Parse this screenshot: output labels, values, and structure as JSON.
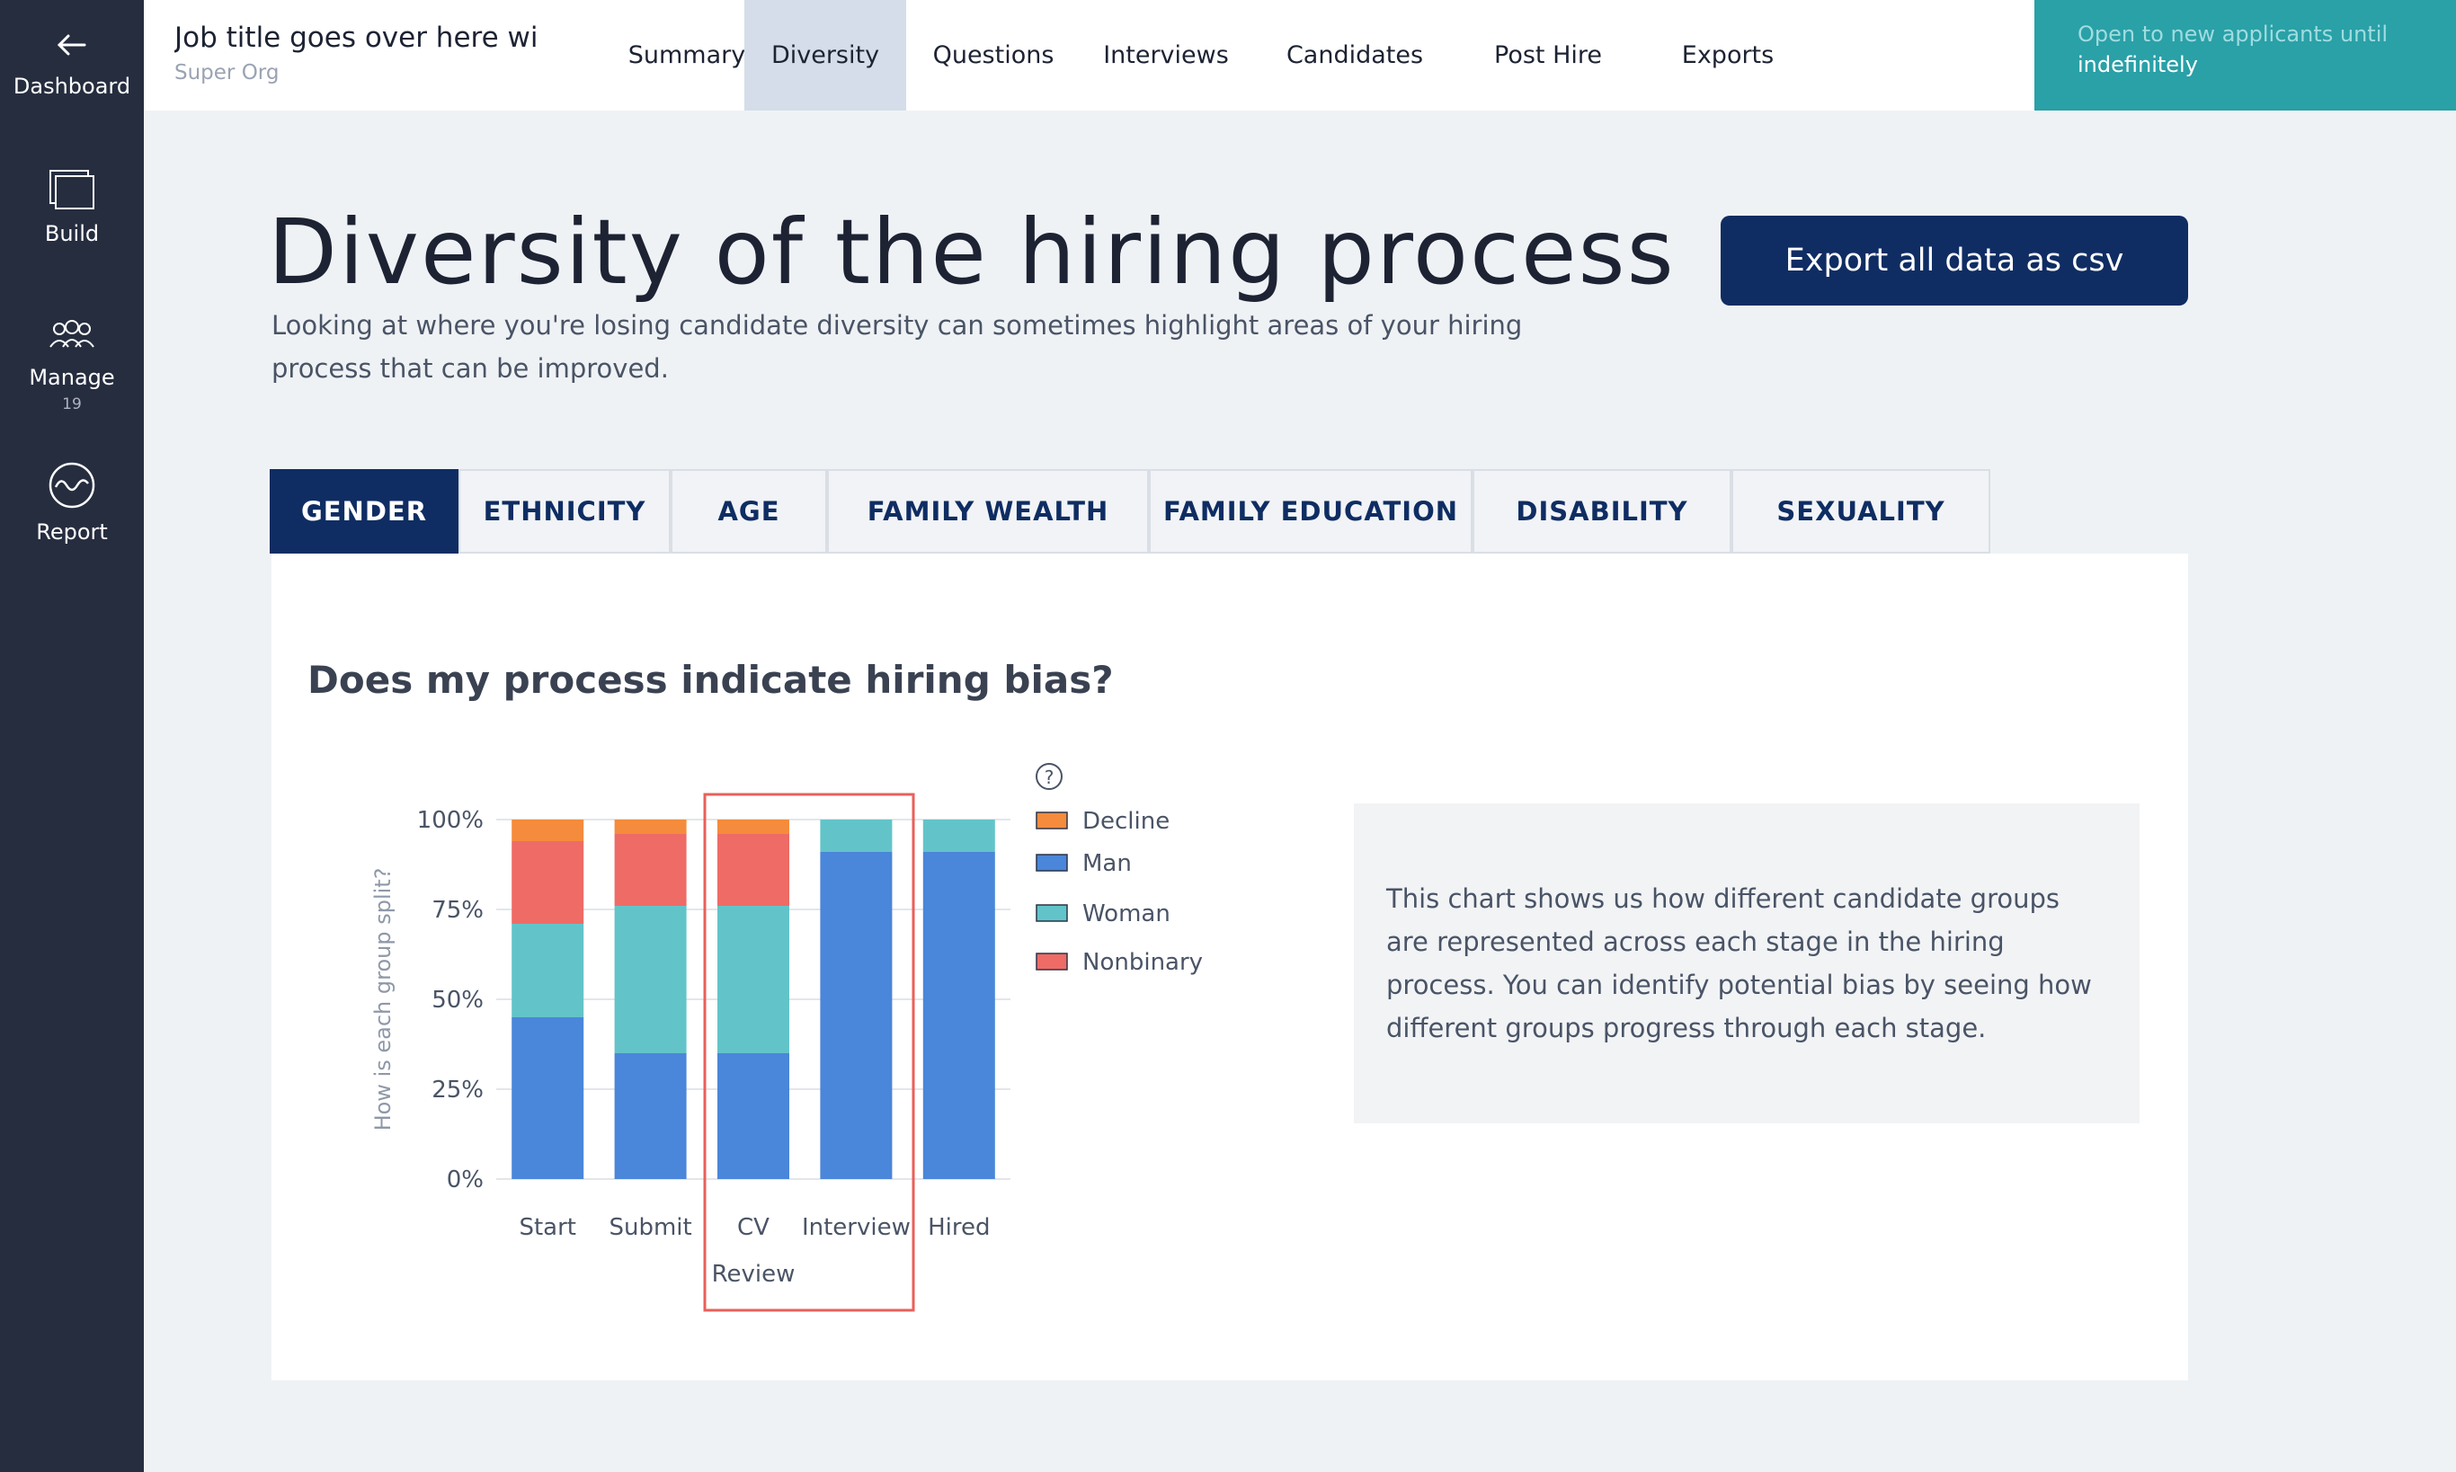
{
  "sidebar": {
    "items": [
      {
        "label": "Dashboard",
        "icon": "arrow-left-icon"
      },
      {
        "label": "Build",
        "icon": "windows-icon"
      },
      {
        "label": "Manage",
        "icon": "people-icon",
        "badge": "19"
      },
      {
        "label": "Report",
        "icon": "wave-icon"
      }
    ]
  },
  "header": {
    "job_title": "Job title goes over here wi",
    "org": "Super Org",
    "tabs": [
      "Summary",
      "Diversity",
      "Questions",
      "Interviews",
      "Candidates",
      "Post Hire",
      "Exports"
    ],
    "open_line1": "Open to new applicants until",
    "open_line2": "indefinitely"
  },
  "page": {
    "title": "Diversity of the hiring process",
    "description": "Looking at where you're losing candidate diversity can sometimes highlight areas of your hiring process that can be improved.",
    "export_label": "Export all data as csv"
  },
  "diversity_tabs": [
    "GENDER",
    "ETHNICITY",
    "AGE",
    "FAMILY WEALTH",
    "FAMILY EDUCATION",
    "DISABILITY",
    "SEXUALITY"
  ],
  "panel": {
    "title": "Does my process indicate hiring bias?",
    "info": "This chart shows us how different candidate groups are represented across each stage in the hiring process. You can identify potential bias by seeing how different groups progress through each stage."
  },
  "colors": {
    "Decline": "#f58b3c",
    "Man": "#4a86d9",
    "Woman": "#62c4c9",
    "Nonbinary": "#ee6b66",
    "highlight": "#e8605b"
  },
  "chart_data": {
    "type": "bar",
    "stacked": true,
    "categories": [
      "Start",
      "Submit",
      "CV Review",
      "Interview",
      "Hired"
    ],
    "ylabel": "How is each group split?",
    "ylim": [
      0,
      100
    ],
    "yticks": [
      "0%",
      "25%",
      "50%",
      "75%",
      "100%"
    ],
    "legend_position": "right",
    "highlighted_category": "CV Review",
    "series": [
      {
        "name": "Man",
        "values": [
          45,
          35,
          35,
          91,
          91
        ]
      },
      {
        "name": "Woman",
        "values": [
          26,
          41,
          41,
          9,
          9
        ]
      },
      {
        "name": "Nonbinary",
        "values": [
          23,
          20,
          20,
          0,
          0
        ]
      },
      {
        "name": "Decline",
        "values": [
          6,
          4,
          4,
          0,
          0
        ]
      }
    ],
    "legend": [
      "Decline",
      "Man",
      "Woman",
      "Nonbinary"
    ]
  }
}
